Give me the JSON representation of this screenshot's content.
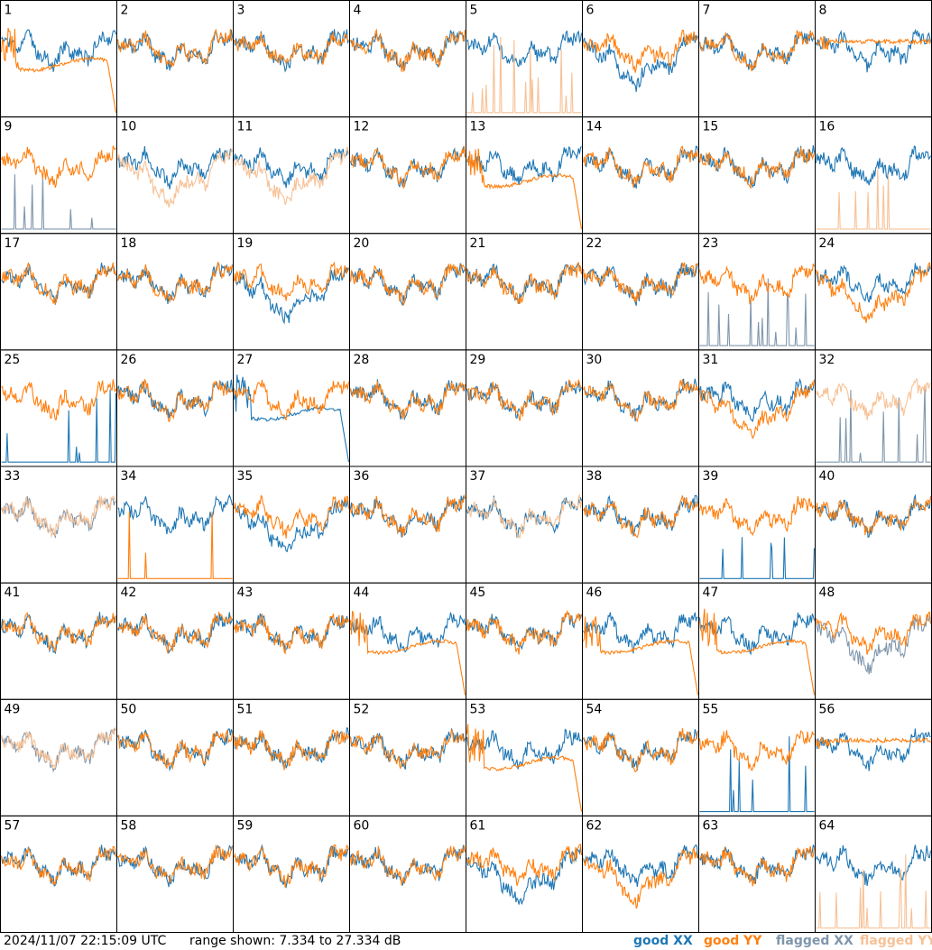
{
  "footer": {
    "timestamp": "2024/11/07 22:15:09 UTC",
    "range_text": "range shown: 7.334 to 27.334 dB"
  },
  "legend": {
    "good_xx": {
      "label": "good XX",
      "color": "#1f77b4"
    },
    "good_yy": {
      "label": "good YY",
      "color": "#ff7f0e"
    },
    "flagged_xx": {
      "label": "flagged XX",
      "color": "#7f96ac"
    },
    "flagged_yy": {
      "label": "flagged YY",
      "color": "#f7c195"
    }
  },
  "chart_data": {
    "type": "line",
    "grid_rows": 8,
    "grid_cols": 8,
    "ylim": [
      7.334,
      27.334
    ],
    "units": "dB",
    "panels": [
      {
        "id": "1",
        "xx": "good",
        "yy": "good",
        "xx_style": "normal",
        "yy_style": "dropend"
      },
      {
        "id": "2",
        "xx": "good",
        "yy": "good",
        "xx_style": "normal",
        "yy_style": "normal"
      },
      {
        "id": "3",
        "xx": "good",
        "yy": "good",
        "xx_style": "normal",
        "yy_style": "normal"
      },
      {
        "id": "4",
        "xx": "good",
        "yy": "good",
        "xx_style": "normal",
        "yy_style": "normal"
      },
      {
        "id": "5",
        "xx": "good",
        "yy": "flagged",
        "xx_style": "normal",
        "yy_style": "low"
      },
      {
        "id": "6",
        "xx": "good",
        "yy": "good",
        "xx_style": "deep",
        "yy_style": "normal"
      },
      {
        "id": "7",
        "xx": "good",
        "yy": "good",
        "xx_style": "normal",
        "yy_style": "normal"
      },
      {
        "id": "8",
        "xx": "good",
        "yy": "good",
        "xx_style": "normal",
        "yy_style": "flat"
      },
      {
        "id": "9",
        "xx": "flagged",
        "yy": "good",
        "xx_style": "low",
        "yy_style": "normal"
      },
      {
        "id": "10",
        "xx": "good",
        "yy": "flagged",
        "xx_style": "normal",
        "yy_style": "deep"
      },
      {
        "id": "11",
        "xx": "good",
        "yy": "flagged",
        "xx_style": "normal",
        "yy_style": "deep"
      },
      {
        "id": "12",
        "xx": "good",
        "yy": "good",
        "xx_style": "normal",
        "yy_style": "normal"
      },
      {
        "id": "13",
        "xx": "good",
        "yy": "good",
        "xx_style": "normal",
        "yy_style": "dropend"
      },
      {
        "id": "14",
        "xx": "good",
        "yy": "good",
        "xx_style": "normal",
        "yy_style": "normal"
      },
      {
        "id": "15",
        "xx": "good",
        "yy": "good",
        "xx_style": "normal",
        "yy_style": "normal"
      },
      {
        "id": "16",
        "xx": "good",
        "yy": "flagged",
        "xx_style": "normal",
        "yy_style": "low"
      },
      {
        "id": "17",
        "xx": "good",
        "yy": "good",
        "xx_style": "normal",
        "yy_style": "normal"
      },
      {
        "id": "18",
        "xx": "good",
        "yy": "good",
        "xx_style": "normal",
        "yy_style": "normal"
      },
      {
        "id": "19",
        "xx": "good",
        "yy": "good",
        "xx_style": "deep",
        "yy_style": "normal"
      },
      {
        "id": "20",
        "xx": "good",
        "yy": "good",
        "xx_style": "normal",
        "yy_style": "normal"
      },
      {
        "id": "21",
        "xx": "good",
        "yy": "good",
        "xx_style": "normal",
        "yy_style": "normal"
      },
      {
        "id": "22",
        "xx": "good",
        "yy": "good",
        "xx_style": "normal",
        "yy_style": "normal"
      },
      {
        "id": "23",
        "xx": "flagged",
        "yy": "good",
        "xx_style": "low",
        "yy_style": "normal"
      },
      {
        "id": "24",
        "xx": "good",
        "yy": "good",
        "xx_style": "normal",
        "yy_style": "deep"
      },
      {
        "id": "25",
        "xx": "good",
        "yy": "good",
        "xx_style": "low",
        "yy_style": "normal"
      },
      {
        "id": "26",
        "xx": "good",
        "yy": "good",
        "xx_style": "normal",
        "yy_style": "normal"
      },
      {
        "id": "27",
        "xx": "good",
        "yy": "good",
        "xx_style": "dropend",
        "yy_style": "normal"
      },
      {
        "id": "28",
        "xx": "good",
        "yy": "good",
        "xx_style": "normal",
        "yy_style": "normal"
      },
      {
        "id": "29",
        "xx": "good",
        "yy": "good",
        "xx_style": "normal",
        "yy_style": "normal"
      },
      {
        "id": "30",
        "xx": "good",
        "yy": "good",
        "xx_style": "normal",
        "yy_style": "normal"
      },
      {
        "id": "31",
        "xx": "good",
        "yy": "good",
        "xx_style": "normal",
        "yy_style": "deep"
      },
      {
        "id": "32",
        "xx": "flagged",
        "yy": "flagged",
        "xx_style": "low",
        "yy_style": "normal"
      },
      {
        "id": "33",
        "xx": "flagged",
        "yy": "flagged",
        "xx_style": "normal",
        "yy_style": "normal"
      },
      {
        "id": "34",
        "xx": "good",
        "yy": "good",
        "xx_style": "normal",
        "yy_style": "low"
      },
      {
        "id": "35",
        "xx": "good",
        "yy": "good",
        "xx_style": "deep",
        "yy_style": "normal"
      },
      {
        "id": "36",
        "xx": "good",
        "yy": "good",
        "xx_style": "normal",
        "yy_style": "normal"
      },
      {
        "id": "37",
        "xx": "good",
        "yy": "flagged",
        "xx_style": "normal",
        "yy_style": "normal"
      },
      {
        "id": "38",
        "xx": "good",
        "yy": "good",
        "xx_style": "normal",
        "yy_style": "normal"
      },
      {
        "id": "39",
        "xx": "good",
        "yy": "good",
        "xx_style": "low",
        "yy_style": "normal"
      },
      {
        "id": "40",
        "xx": "good",
        "yy": "good",
        "xx_style": "normal",
        "yy_style": "normal"
      },
      {
        "id": "41",
        "xx": "good",
        "yy": "good",
        "xx_style": "normal",
        "yy_style": "normal"
      },
      {
        "id": "42",
        "xx": "good",
        "yy": "good",
        "xx_style": "normal",
        "yy_style": "normal"
      },
      {
        "id": "43",
        "xx": "good",
        "yy": "good",
        "xx_style": "normal",
        "yy_style": "normal"
      },
      {
        "id": "44",
        "xx": "good",
        "yy": "good",
        "xx_style": "normal",
        "yy_style": "dropend"
      },
      {
        "id": "45",
        "xx": "good",
        "yy": "good",
        "xx_style": "normal",
        "yy_style": "normal"
      },
      {
        "id": "46",
        "xx": "good",
        "yy": "good",
        "xx_style": "normal",
        "yy_style": "dropend"
      },
      {
        "id": "47",
        "xx": "good",
        "yy": "good",
        "xx_style": "normal",
        "yy_style": "dropend"
      },
      {
        "id": "48",
        "xx": "flagged",
        "yy": "good",
        "xx_style": "deep",
        "yy_style": "normal"
      },
      {
        "id": "49",
        "xx": "flagged",
        "yy": "flagged",
        "xx_style": "normal",
        "yy_style": "normal"
      },
      {
        "id": "50",
        "xx": "good",
        "yy": "good",
        "xx_style": "normal",
        "yy_style": "normal"
      },
      {
        "id": "51",
        "xx": "good",
        "yy": "good",
        "xx_style": "normal",
        "yy_style": "normal"
      },
      {
        "id": "52",
        "xx": "good",
        "yy": "good",
        "xx_style": "normal",
        "yy_style": "normal"
      },
      {
        "id": "53",
        "xx": "good",
        "yy": "good",
        "xx_style": "normal",
        "yy_style": "dropend"
      },
      {
        "id": "54",
        "xx": "good",
        "yy": "good",
        "xx_style": "normal",
        "yy_style": "normal"
      },
      {
        "id": "55",
        "xx": "good",
        "yy": "good",
        "xx_style": "low",
        "yy_style": "normal"
      },
      {
        "id": "56",
        "xx": "good",
        "yy": "good",
        "xx_style": "normal",
        "yy_style": "flat"
      },
      {
        "id": "57",
        "xx": "good",
        "yy": "good",
        "xx_style": "normal",
        "yy_style": "normal"
      },
      {
        "id": "58",
        "xx": "good",
        "yy": "good",
        "xx_style": "normal",
        "yy_style": "normal"
      },
      {
        "id": "59",
        "xx": "good",
        "yy": "good",
        "xx_style": "normal",
        "yy_style": "normal"
      },
      {
        "id": "60",
        "xx": "good",
        "yy": "good",
        "xx_style": "normal",
        "yy_style": "normal"
      },
      {
        "id": "61",
        "xx": "good",
        "yy": "good",
        "xx_style": "deep",
        "yy_style": "normal"
      },
      {
        "id": "62",
        "xx": "good",
        "yy": "good",
        "xx_style": "normal",
        "yy_style": "deep"
      },
      {
        "id": "63",
        "xx": "good",
        "yy": "good",
        "xx_style": "normal",
        "yy_style": "normal"
      },
      {
        "id": "64",
        "xx": "good",
        "yy": "flagged",
        "xx_style": "normal",
        "yy_style": "low"
      }
    ]
  }
}
